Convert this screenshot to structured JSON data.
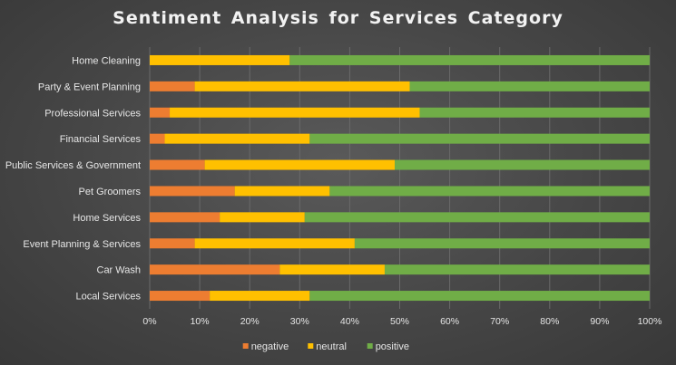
{
  "chart_data": {
    "type": "bar",
    "orientation": "horizontal",
    "stacked": "percent",
    "title": "Sentiment Analysis for Services Category",
    "xlabel": "",
    "ylabel": "",
    "xlim": [
      0,
      100
    ],
    "x_ticks": [
      "0%",
      "10%",
      "20%",
      "30%",
      "40%",
      "50%",
      "60%",
      "70%",
      "80%",
      "90%",
      "100%"
    ],
    "grid": true,
    "legend_position": "bottom",
    "categories": [
      "Home Cleaning",
      "Party & Event Planning",
      "Professional Services",
      "Financial Services",
      "Public Services & Government",
      "Pet Groomers",
      "Home Services",
      "Event Planning & Services",
      "Car Wash",
      "Local Services"
    ],
    "series": [
      {
        "name": "negative",
        "color": "#ed7d31",
        "values": [
          0,
          9,
          4,
          3,
          11,
          17,
          14,
          9,
          26,
          12
        ]
      },
      {
        "name": "neutral",
        "color": "#ffc000",
        "values": [
          28,
          43,
          50,
          29,
          38,
          19,
          17,
          32,
          21,
          20
        ]
      },
      {
        "name": "positive",
        "color": "#70ad47",
        "values": [
          72,
          48,
          46,
          68,
          51,
          64,
          69,
          59,
          53,
          68
        ]
      }
    ]
  }
}
